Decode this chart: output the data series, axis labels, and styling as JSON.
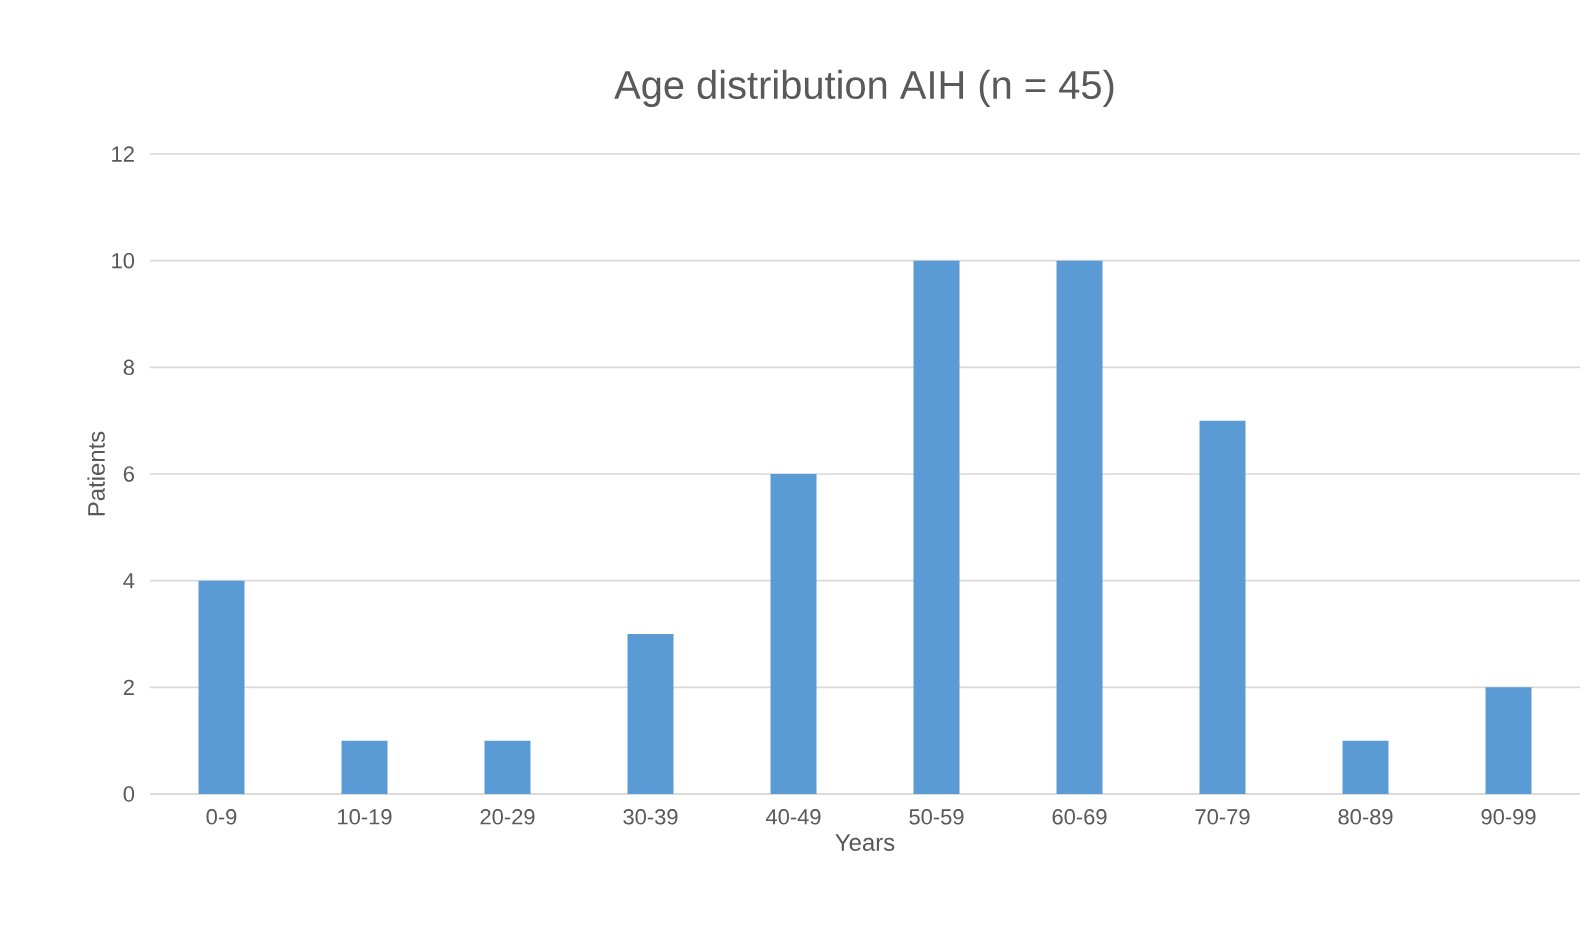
{
  "chart_data": {
    "type": "bar",
    "title": "Age distribution AIH (n = 45)",
    "xlabel": "Years",
    "ylabel": "Patients",
    "categories": [
      "0-9",
      "10-19",
      "20-29",
      "30-39",
      "40-49",
      "50-59",
      "60-69",
      "70-79",
      "80-89",
      "90-99"
    ],
    "values": [
      4,
      1,
      1,
      3,
      6,
      10,
      10,
      7,
      1,
      2
    ],
    "color": "#5b9bd5",
    "ylim": [
      0,
      12
    ],
    "yticks": [
      0,
      2,
      4,
      6,
      8,
      10,
      12
    ],
    "grid": "y"
  }
}
